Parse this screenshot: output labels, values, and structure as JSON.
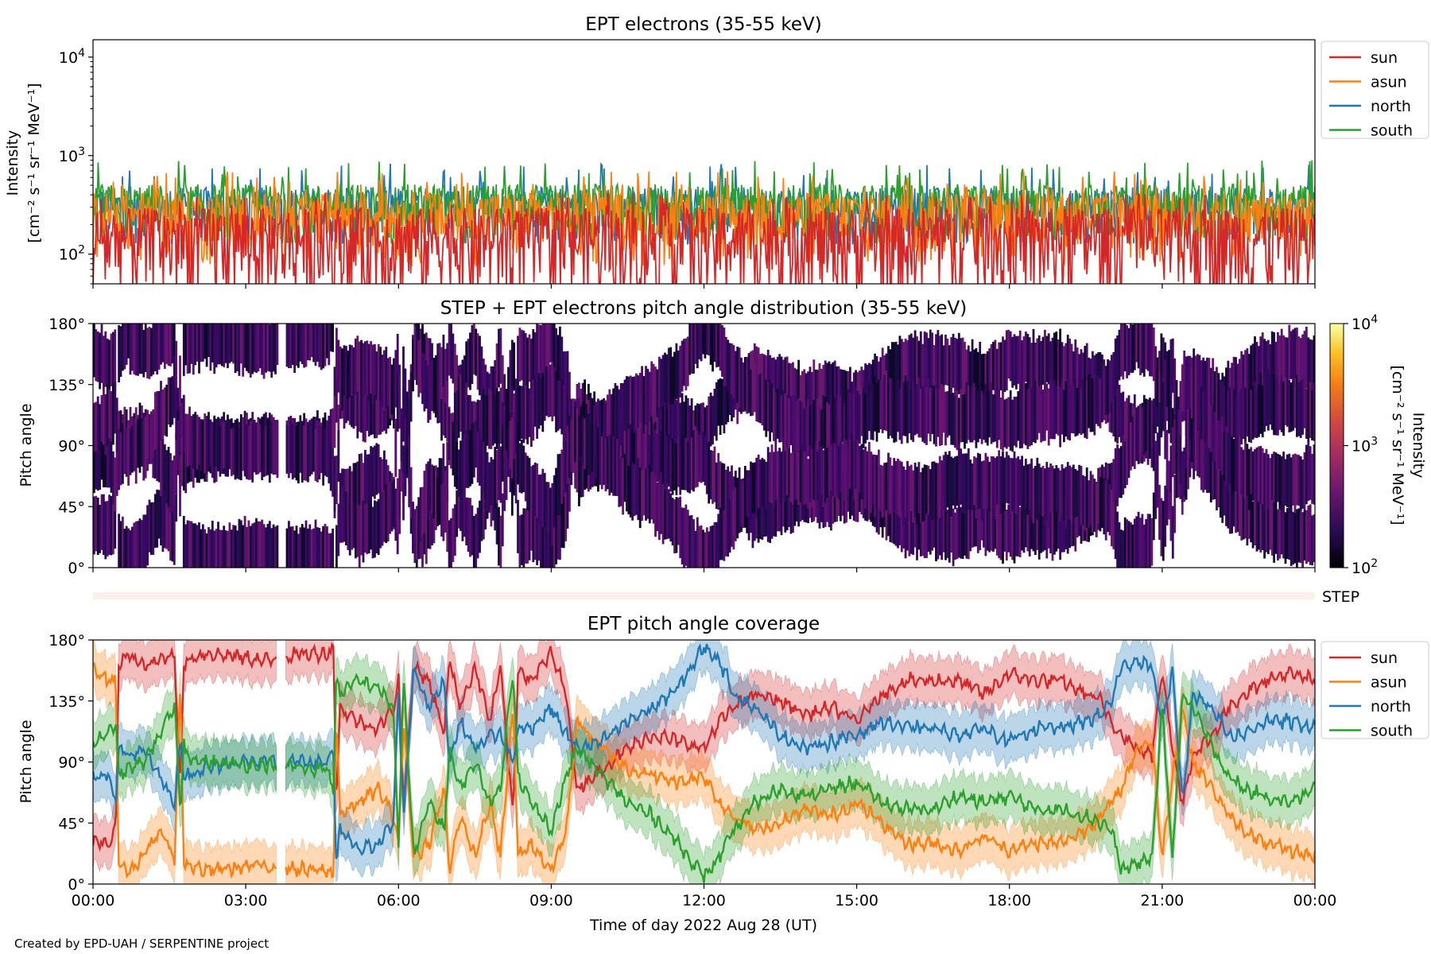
{
  "footer": {
    "credit": "Created by EPD-UAH / SERPENTINE project"
  },
  "chart_data": [
    {
      "type": "line",
      "title": "EPT electrons (35-55 keV)",
      "xlabel": "",
      "ylabel_line1": "Intensity",
      "ylabel_line2": "[cm⁻² s⁻¹ sr⁻¹ MeV⁻¹]",
      "yscale": "log",
      "ylim": [
        50,
        15000
      ],
      "yticks": [
        {
          "value": 100,
          "base": "10",
          "exp": "2"
        },
        {
          "value": 1000,
          "base": "10",
          "exp": "3"
        },
        {
          "value": 10000,
          "base": "10",
          "exp": "4"
        }
      ],
      "xlim_hours": [
        0,
        24
      ],
      "legend_position": "outside-right-top",
      "series": [
        {
          "name": "sun",
          "color": "#d62728",
          "typical": 150,
          "spread": 90
        },
        {
          "name": "asun",
          "color": "#ff7f0e",
          "typical": 250,
          "spread": 110
        },
        {
          "name": "north",
          "color": "#1f77b4",
          "typical": 300,
          "spread": 110
        },
        {
          "name": "south",
          "color": "#2ca02c",
          "typical": 320,
          "spread": 120
        }
      ]
    },
    {
      "type": "heatmap",
      "title": "STEP + EPT electrons pitch angle distribution (35-55 keV)",
      "ylabel": "Pitch angle",
      "ylim": [
        0,
        180
      ],
      "yticks": [
        "0°",
        "45°",
        "90°",
        "135°",
        "180°"
      ],
      "colormap": "inferno",
      "colorbar": {
        "label_line1": "Intensity",
        "label_line2": "[cm⁻² s⁻¹ sr⁻¹ MeV⁻¹]",
        "scale": "log",
        "range": [
          100,
          10000
        ],
        "ticks": [
          {
            "value": 100,
            "base": "10",
            "exp": "2"
          },
          {
            "value": 1000,
            "base": "10",
            "exp": "3"
          },
          {
            "value": 10000,
            "base": "10",
            "exp": "4"
          }
        ]
      },
      "note": "intensities mostly 150-350 (dark purple), derived from the EPT sector pitch angles"
    },
    {
      "type": "heatmap",
      "label": "STEP",
      "color": "#fdf0ea"
    },
    {
      "type": "line",
      "title": "EPT pitch angle coverage",
      "xlabel": "Time of day 2022 Aug 28 (UT)",
      "ylabel": "Pitch angle",
      "ylim": [
        0,
        180
      ],
      "yticks": [
        "0°",
        "45°",
        "90°",
        "135°",
        "180°"
      ],
      "xticks": [
        "00:00",
        "03:00",
        "06:00",
        "09:00",
        "12:00",
        "15:00",
        "18:00",
        "21:00",
        "00:00"
      ],
      "legend_position": "outside-right-top",
      "band_halfwidth_deg": 17,
      "gaps_hours": [
        [
          3.62,
          3.78
        ]
      ],
      "x_hours": [
        0,
        0.3,
        0.45,
        0.5,
        0.7,
        1.0,
        1.3,
        1.6,
        1.72,
        1.78,
        1.82,
        2.2,
        2.8,
        3.3,
        3.6,
        3.8,
        4.2,
        4.6,
        4.72,
        4.78,
        4.85,
        5.2,
        5.6,
        5.9,
        6.0,
        6.1,
        6.3,
        6.6,
        6.9,
        7.0,
        7.2,
        7.5,
        7.8,
        8.0,
        8.25,
        8.35,
        8.6,
        9.0,
        9.3,
        9.5,
        10.0,
        10.5,
        11.0,
        11.5,
        12.0,
        12.3,
        12.6,
        13.0,
        13.5,
        14.0,
        14.5,
        15.0,
        15.5,
        16.0,
        16.5,
        17.0,
        17.5,
        18.0,
        18.5,
        19.0,
        19.5,
        19.8,
        20.0,
        20.2,
        20.5,
        20.8,
        21.0,
        21.2,
        21.4,
        21.6,
        22.0,
        22.3,
        22.6,
        23.0,
        23.5,
        24.0
      ],
      "series": [
        {
          "name": "sun",
          "color": "#d62728",
          "values": [
            30,
            30,
            40,
            160,
            170,
            160,
            165,
            170,
            70,
            160,
            165,
            170,
            168,
            165,
            165,
            168,
            170,
            170,
            175,
            60,
            130,
            120,
            115,
            130,
            150,
            60,
            160,
            150,
            110,
            170,
            130,
            160,
            120,
            160,
            50,
            160,
            150,
            170,
            140,
            70,
            85,
            100,
            110,
            105,
            100,
            120,
            130,
            140,
            135,
            125,
            130,
            120,
            140,
            150,
            150,
            150,
            140,
            155,
            150,
            150,
            140,
            135,
            120,
            110,
            100,
            95,
            160,
            100,
            60,
            95,
            110,
            130,
            140,
            150,
            155,
            150
          ]
        },
        {
          "name": "asun",
          "color": "#ff7f0e",
          "values": [
            160,
            150,
            150,
            15,
            10,
            20,
            40,
            20,
            150,
            15,
            15,
            10,
            12,
            14,
            12,
            12,
            10,
            10,
            5,
            130,
            50,
            60,
            70,
            50,
            30,
            120,
            20,
            30,
            70,
            10,
            50,
            20,
            60,
            20,
            130,
            20,
            30,
            10,
            40,
            120,
            100,
            85,
            80,
            75,
            80,
            60,
            50,
            40,
            45,
            55,
            50,
            60,
            45,
            30,
            30,
            25,
            35,
            25,
            30,
            30,
            40,
            50,
            60,
            70,
            100,
            105,
            20,
            80,
            130,
            90,
            70,
            50,
            40,
            30,
            25,
            20
          ]
        },
        {
          "name": "north",
          "color": "#1f77b4",
          "values": [
            80,
            80,
            60,
            100,
            95,
            100,
            80,
            60,
            110,
            75,
            80,
            85,
            90,
            90,
            90,
            90,
            90,
            90,
            100,
            10,
            40,
            25,
            30,
            45,
            140,
            50,
            160,
            130,
            150,
            90,
            120,
            100,
            110,
            110,
            90,
            115,
            115,
            130,
            110,
            100,
            105,
            120,
            130,
            145,
            175,
            165,
            140,
            130,
            110,
            100,
            105,
            110,
            120,
            115,
            115,
            110,
            115,
            105,
            115,
            115,
            120,
            125,
            135,
            160,
            165,
            160,
            120,
            155,
            60,
            140,
            130,
            110,
            110,
            120,
            120,
            115
          ]
        },
        {
          "name": "south",
          "color": "#2ca02c",
          "values": [
            105,
            110,
            120,
            80,
            85,
            90,
            110,
            130,
            55,
            105,
            95,
            90,
            88,
            88,
            88,
            88,
            85,
            85,
            70,
            155,
            140,
            150,
            145,
            130,
            30,
            150,
            20,
            60,
            40,
            100,
            70,
            90,
            60,
            70,
            160,
            80,
            60,
            40,
            80,
            100,
            80,
            60,
            50,
            30,
            5,
            20,
            40,
            60,
            70,
            65,
            70,
            75,
            60,
            55,
            55,
            65,
            60,
            65,
            55,
            55,
            50,
            45,
            40,
            10,
            15,
            20,
            130,
            20,
            140,
            130,
            100,
            80,
            70,
            65,
            60,
            70
          ]
        }
      ]
    }
  ]
}
